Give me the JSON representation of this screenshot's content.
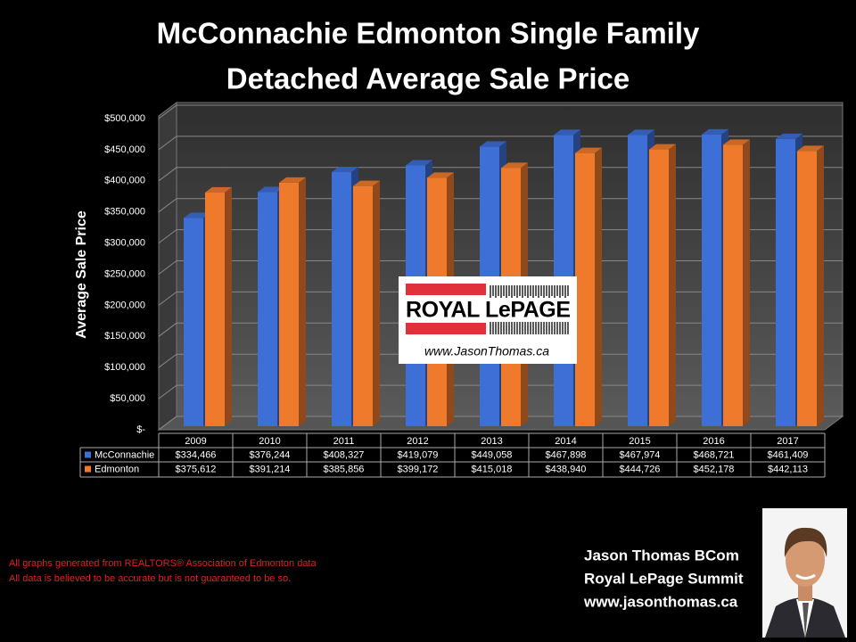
{
  "chart_data": {
    "type": "bar",
    "title": [
      "McConnachie Edmonton Single Family",
      "Detached Average Sale Price"
    ],
    "y_label": "Average Sale Price",
    "categories": [
      "2009",
      "2010",
      "2011",
      "2012",
      "2013",
      "2014",
      "2015",
      "2016",
      "2017"
    ],
    "series": [
      {
        "name": "McConnachie",
        "color": "#3d6fd6",
        "values": [
          334466,
          376244,
          408327,
          419079,
          449058,
          467898,
          467974,
          468721,
          461409
        ],
        "value_labels": [
          "$334,466",
          "$376,244",
          "$408,327",
          "$419,079",
          "$449,058",
          "$467,898",
          "$467,974",
          "$468,721",
          "$461,409"
        ]
      },
      {
        "name": "Edmonton",
        "color": "#f07a2c",
        "values": [
          375612,
          391214,
          385856,
          399172,
          415018,
          438940,
          444726,
          452178,
          442113
        ],
        "value_labels": [
          "$375,612",
          "$391,214",
          "$385,856",
          "$399,172",
          "$415,018",
          "$438,940",
          "$444,726",
          "$452,178",
          "$442,113"
        ]
      }
    ],
    "ylim": [
      0,
      500000
    ],
    "yticks": [
      {
        "value": 0,
        "label": "$-"
      },
      {
        "value": 50000,
        "label": "$50,000"
      },
      {
        "value": 100000,
        "label": "$100,000"
      },
      {
        "value": 150000,
        "label": "$150,000"
      },
      {
        "value": 200000,
        "label": "$200,000"
      },
      {
        "value": 250000,
        "label": "$250,000"
      },
      {
        "value": 300000,
        "label": "$300,000"
      },
      {
        "value": 350000,
        "label": "$350,000"
      },
      {
        "value": 400000,
        "label": "$400,000"
      },
      {
        "value": 450000,
        "label": "$450,000"
      },
      {
        "value": 500000,
        "label": "$500,000"
      }
    ],
    "grid": true
  },
  "logo": {
    "brand": "ROYAL LePAGE",
    "url": "www.JasonThomas.ca"
  },
  "footnotes": [
    "All graphs generated from REALTORS® Association of Edmonton data",
    "All data is believed to be accurate but is not guaranteed to be so."
  ],
  "signature": [
    "Jason Thomas BCom",
    "Royal LePage Summit",
    "www.jasonthomas.ca"
  ]
}
